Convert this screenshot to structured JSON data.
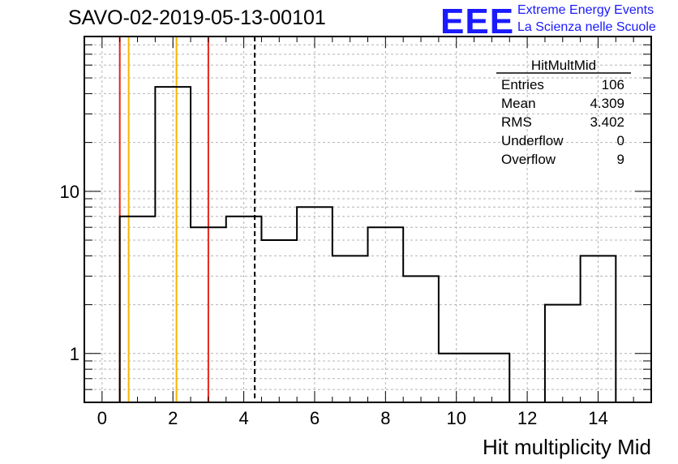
{
  "title": "SAVO-02-2019-05-13-00101",
  "logo": {
    "mark": "EEE",
    "line1": "Extreme Energy Events",
    "line2": "La Scienza nelle Scuole"
  },
  "stats": {
    "name": "HitMultMid",
    "rows": [
      {
        "label": "Entries",
        "value": "106"
      },
      {
        "label": "Mean",
        "value": "4.309"
      },
      {
        "label": "RMS",
        "value": "3.402"
      },
      {
        "label": "Underflow",
        "value": "0"
      },
      {
        "label": "Overflow",
        "value": "9"
      }
    ]
  },
  "chart_data": {
    "type": "histogram",
    "xlabel": "Hit multiplicity Mid",
    "ylabel": "",
    "xlim": [
      -0.5,
      15.5
    ],
    "ylim": [
      0.5,
      90
    ],
    "yscale": "log",
    "grid": true,
    "x_ticks": [
      0,
      2,
      4,
      6,
      8,
      10,
      12,
      14
    ],
    "y_ticks": [
      1,
      10
    ],
    "bins": [
      {
        "lo": 0.5,
        "hi": 1.5,
        "count": 7
      },
      {
        "lo": 1.5,
        "hi": 2.5,
        "count": 44
      },
      {
        "lo": 2.5,
        "hi": 3.5,
        "count": 6
      },
      {
        "lo": 3.5,
        "hi": 4.5,
        "count": 7
      },
      {
        "lo": 4.5,
        "hi": 5.5,
        "count": 5
      },
      {
        "lo": 5.5,
        "hi": 6.5,
        "count": 8
      },
      {
        "lo": 6.5,
        "hi": 7.5,
        "count": 4
      },
      {
        "lo": 7.5,
        "hi": 8.5,
        "count": 6
      },
      {
        "lo": 8.5,
        "hi": 9.5,
        "count": 3
      },
      {
        "lo": 9.5,
        "hi": 11.5,
        "count": 1
      },
      {
        "lo": 11.5,
        "hi": 12.5,
        "count": 0
      },
      {
        "lo": 12.5,
        "hi": 13.5,
        "count": 2
      },
      {
        "lo": 13.5,
        "hi": 14.5,
        "count": 4
      }
    ],
    "vertical_lines": [
      {
        "x": 0.5,
        "color": "#e8231a",
        "style": "solid"
      },
      {
        "x": 0.75,
        "color": "#f5b400",
        "style": "solid"
      },
      {
        "x": 2.1,
        "color": "#f5b400",
        "style": "solid"
      },
      {
        "x": 3.0,
        "color": "#e8231a",
        "style": "solid"
      },
      {
        "x": 4.309,
        "color": "#000000",
        "style": "dashed"
      }
    ]
  }
}
